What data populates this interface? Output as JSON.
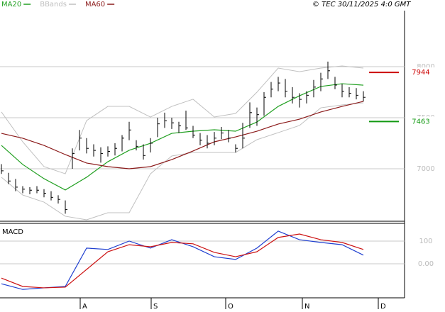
{
  "chart_data": {
    "type": "ohlc",
    "source": "© TEC 30/11/2025 4:0 GMT",
    "xlim": [
      -0.4,
      113.6
    ],
    "xticks": [
      {
        "value": 22.2,
        "label": "A"
      },
      {
        "value": 42.2,
        "label": "S"
      },
      {
        "value": 63.2,
        "label": "O"
      },
      {
        "value": 84.8,
        "label": "N"
      },
      {
        "value": 106.2,
        "label": "D"
      }
    ],
    "ylim": [
      6486,
      8549
    ],
    "yticks": [
      7000,
      7500,
      8000
    ],
    "grid": true,
    "bar_color": "#000000",
    "ohlc": {
      "x": [
        0,
        2,
        4,
        6,
        8,
        10,
        12,
        14,
        16,
        18,
        20,
        22,
        24,
        26,
        28,
        30,
        32,
        34,
        36,
        38,
        40,
        42,
        44,
        46,
        48,
        50,
        52,
        54,
        56,
        58,
        60,
        62,
        64,
        66,
        68,
        70,
        72,
        74,
        76,
        78,
        80,
        82,
        84,
        86,
        88,
        90,
        92,
        94,
        96,
        98,
        100,
        102
      ],
      "high": [
        7045,
        6960,
        6900,
        6830,
        6820,
        6830,
        6800,
        6780,
        6740,
        6690,
        7200,
        7380,
        7300,
        7240,
        7210,
        7220,
        7250,
        7330,
        7460,
        7280,
        7240,
        7300,
        7500,
        7550,
        7500,
        7460,
        7570,
        7420,
        7350,
        7330,
        7360,
        7410,
        7380,
        7240,
        7450,
        7650,
        7600,
        7750,
        7850,
        7900,
        7880,
        7800,
        7740,
        7760,
        7870,
        7940,
        8050,
        7900,
        7830,
        7800,
        7790,
        7760
      ],
      "low": [
        6950,
        6850,
        6780,
        6760,
        6750,
        6760,
        6720,
        6690,
        6660,
        6560,
        7000,
        7180,
        7150,
        7120,
        7060,
        7120,
        7130,
        7170,
        7280,
        7180,
        7090,
        7160,
        7310,
        7400,
        7390,
        7350,
        7380,
        7300,
        7230,
        7200,
        7230,
        7290,
        7260,
        7160,
        7200,
        7400,
        7420,
        7520,
        7700,
        7760,
        7700,
        7640,
        7600,
        7640,
        7700,
        7760,
        7880,
        7780,
        7700,
        7700,
        7680,
        7660
      ],
      "close": [
        6980,
        6880,
        6820,
        6800,
        6790,
        6790,
        6760,
        6720,
        6700,
        6600,
        7150,
        7300,
        7200,
        7180,
        7150,
        7170,
        7200,
        7300,
        7380,
        7220,
        7130,
        7250,
        7440,
        7470,
        7450,
        7420,
        7400,
        7330,
        7280,
        7250,
        7300,
        7350,
        7300,
        7200,
        7300,
        7550,
        7530,
        7700,
        7780,
        7840,
        7760,
        7700,
        7680,
        7720,
        7800,
        7880,
        7960,
        7820,
        7760,
        7740,
        7720,
        7700
      ]
    },
    "lines_x": [
      0,
      6,
      12,
      18,
      24,
      30,
      36,
      42,
      48,
      54,
      60,
      66,
      72,
      78,
      84,
      90,
      96,
      102
    ],
    "series": [
      {
        "name": "MA20",
        "color": "#22a022",
        "values": [
          7229,
          7042,
          6903,
          6792,
          6917,
          7069,
          7181,
          7250,
          7347,
          7368,
          7382,
          7368,
          7458,
          7611,
          7715,
          7806,
          7833,
          7819
        ]
      },
      {
        "name": "BBands",
        "color": "#c0c0c0",
        "upper": [
          7556,
          7264,
          7021,
          6951,
          7472,
          7611,
          7611,
          7507,
          7611,
          7681,
          7507,
          7542,
          7750,
          7986,
          7951,
          7986,
          8007,
          7986
        ],
        "lower": [
          6917,
          6743,
          6673,
          6535,
          6500,
          6569,
          6569,
          6951,
          7125,
          7160,
          7160,
          7160,
          7285,
          7354,
          7424,
          7597,
          7625,
          7646
        ]
      },
      {
        "name": "MA60",
        "color": "#8b1a1a",
        "values": [
          7347,
          7299,
          7229,
          7139,
          7056,
          7021,
          7000,
          7021,
          7090,
          7174,
          7264,
          7312,
          7368,
          7438,
          7486,
          7556,
          7611,
          7660
        ]
      }
    ],
    "annotations": [
      {
        "value": 7944,
        "color": "#cc0000"
      },
      {
        "value": 7463,
        "color": "#119911"
      }
    ],
    "macd": {
      "title": "MACD",
      "ylim": [
        -150,
        178
      ],
      "yticks": [
        {
          "value": 0,
          "label": "0.00"
        },
        100
      ],
      "macd": {
        "color": "#1f3fd0",
        "values": [
          -88,
          -113,
          -106,
          -100,
          69,
          63,
          100,
          69,
          106,
          75,
          31,
          19,
          69,
          144,
          106,
          94,
          84,
          38
        ]
      },
      "signal": {
        "color": "#cc1111",
        "values": [
          -63,
          -100,
          -106,
          -103,
          -25,
          53,
          84,
          75,
          94,
          88,
          50,
          31,
          53,
          116,
          131,
          106,
          94,
          63
        ]
      }
    }
  }
}
